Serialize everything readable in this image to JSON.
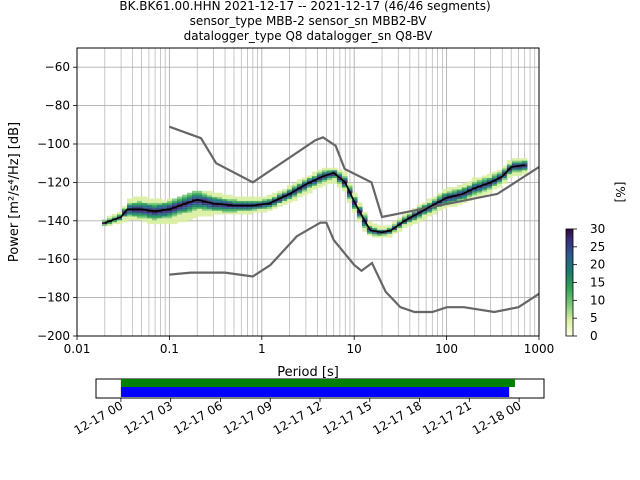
{
  "title": {
    "line1": "BK.BK61.00.HHN   2021-12-17 -- 2021-12-17  (46/46 segments)",
    "line2": "sensor_type MBB-2 sensor_sn MBB2-BV",
    "line3": "datalogger_type Q8 datalogger_sn Q8-BV"
  },
  "colors": {
    "mean": "#000000",
    "noise_model": "#666666",
    "coverage_data": "#0000ff",
    "coverage_gaps": "#008000",
    "colormap": [
      "#ffffe5",
      "#d9f0a3",
      "#78c679",
      "#31a354",
      "#1d7a6e",
      "#2b5a8c",
      "#3b2d77",
      "#2d0a3c"
    ]
  },
  "chart_data": [
    {
      "type": "heatmap",
      "xlabel": "Period [s]",
      "ylabel": "Power [m²/s⁴/Hz] [dB]",
      "xscale": "log",
      "xlim": [
        0.01,
        1000
      ],
      "ylim": [
        -200,
        -50
      ],
      "x_ticks": [
        {
          "value": 0.01,
          "label": "0.01"
        },
        {
          "value": 0.1,
          "label": "0.1"
        },
        {
          "value": 1,
          "label": "1"
        },
        {
          "value": 10,
          "label": "10"
        },
        {
          "value": 100,
          "label": "100"
        },
        {
          "value": 1000,
          "label": "1000"
        }
      ],
      "y_ticks": [
        {
          "value": -60,
          "label": "−60"
        },
        {
          "value": -80,
          "label": "−80"
        },
        {
          "value": -100,
          "label": "−100"
        },
        {
          "value": -120,
          "label": "−120"
        },
        {
          "value": -140,
          "label": "−140"
        },
        {
          "value": -160,
          "label": "−160"
        },
        {
          "value": -180,
          "label": "−180"
        },
        {
          "value": -200,
          "label": "−200"
        }
      ],
      "grid": true,
      "colorbar": {
        "label": "[%]",
        "range": [
          0,
          30
        ],
        "ticks": [
          {
            "value": 0,
            "label": "0"
          },
          {
            "value": 5,
            "label": "5"
          },
          {
            "value": 10,
            "label": "10"
          },
          {
            "value": 15,
            "label": "15"
          },
          {
            "value": 20,
            "label": "20"
          },
          {
            "value": 25,
            "label": "25"
          },
          {
            "value": 30,
            "label": "30"
          }
        ]
      },
      "mean_curve": [
        [
          0.02,
          -141
        ],
        [
          0.03,
          -138
        ],
        [
          0.035,
          -134
        ],
        [
          0.05,
          -134
        ],
        [
          0.07,
          -135
        ],
        [
          0.1,
          -134
        ],
        [
          0.15,
          -131
        ],
        [
          0.2,
          -129
        ],
        [
          0.3,
          -131
        ],
        [
          0.5,
          -132
        ],
        [
          0.8,
          -132
        ],
        [
          1.2,
          -131
        ],
        [
          2,
          -126
        ],
        [
          3,
          -121
        ],
        [
          4.5,
          -117
        ],
        [
          6,
          -115
        ],
        [
          8,
          -120
        ],
        [
          10,
          -130
        ],
        [
          13,
          -140
        ],
        [
          15,
          -145
        ],
        [
          20,
          -146
        ],
        [
          25,
          -145
        ],
        [
          35,
          -140
        ],
        [
          50,
          -136
        ],
        [
          70,
          -132
        ],
        [
          100,
          -128
        ],
        [
          150,
          -126
        ],
        [
          200,
          -123
        ],
        [
          300,
          -120
        ],
        [
          400,
          -117
        ],
        [
          500,
          -112
        ],
        [
          700,
          -111
        ]
      ],
      "high_noise_model": [
        [
          0.1,
          -91
        ],
        [
          0.22,
          -97
        ],
        [
          0.32,
          -110
        ],
        [
          0.8,
          -120
        ],
        [
          3.8,
          -98
        ],
        [
          4.6,
          -96.5
        ],
        [
          6.3,
          -101
        ],
        [
          7.9,
          -113
        ],
        [
          15.4,
          -120
        ],
        [
          20,
          -138
        ],
        [
          354.8,
          -126
        ],
        [
          1000,
          -112
        ]
      ],
      "low_noise_model": [
        [
          0.1,
          -168
        ],
        [
          0.17,
          -167
        ],
        [
          0.4,
          -167
        ],
        [
          0.8,
          -169
        ],
        [
          1.24,
          -163
        ],
        [
          2.4,
          -148
        ],
        [
          4.3,
          -141
        ],
        [
          5,
          -141
        ],
        [
          6,
          -150
        ],
        [
          10,
          -163
        ],
        [
          12,
          -166
        ],
        [
          15.6,
          -162
        ],
        [
          21.9,
          -177
        ],
        [
          31.6,
          -185
        ],
        [
          45,
          -187.5
        ],
        [
          70,
          -187.5
        ],
        [
          101,
          -185
        ],
        [
          154,
          -185
        ],
        [
          328,
          -187.5
        ],
        [
          600,
          -185
        ],
        [
          1000,
          -178
        ]
      ],
      "density_band": [
        [
          0.02,
          -142,
          -140
        ],
        [
          0.03,
          -140,
          -136
        ],
        [
          0.04,
          -138,
          -128
        ],
        [
          0.06,
          -140,
          -129
        ],
        [
          0.08,
          -141,
          -130
        ],
        [
          0.1,
          -141,
          -130
        ],
        [
          0.15,
          -139,
          -127
        ],
        [
          0.2,
          -137,
          -125
        ],
        [
          0.3,
          -136,
          -126
        ],
        [
          0.5,
          -136,
          -128
        ],
        [
          0.8,
          -135,
          -129
        ],
        [
          1.2,
          -134,
          -128
        ],
        [
          2,
          -130,
          -123
        ],
        [
          3,
          -125,
          -118
        ],
        [
          4.5,
          -121,
          -114
        ],
        [
          6,
          -119,
          -113
        ],
        [
          8,
          -124,
          -116
        ],
        [
          10,
          -134,
          -126
        ],
        [
          13,
          -144,
          -136
        ],
        [
          15,
          -147,
          -142
        ],
        [
          20,
          -148,
          -144
        ],
        [
          25,
          -147,
          -143
        ],
        [
          35,
          -143,
          -138
        ],
        [
          50,
          -140,
          -133
        ],
        [
          70,
          -136,
          -129
        ],
        [
          100,
          -132,
          -124
        ],
        [
          150,
          -130,
          -122
        ],
        [
          200,
          -127,
          -119
        ],
        [
          300,
          -124,
          -116
        ],
        [
          400,
          -121,
          -114
        ],
        [
          500,
          -116,
          -109
        ],
        [
          700,
          -115,
          -108
        ]
      ]
    },
    {
      "type": "bar",
      "name": "data coverage",
      "x_ticks": [
        "12-17 00",
        "12-17 03",
        "12-17 06",
        "12-17 09",
        "12-17 12",
        "12-17 15",
        "12-17 18",
        "12-17 21",
        "12-18 00"
      ],
      "range_hours": [
        -1.5,
        25.5
      ],
      "series": [
        {
          "color": "#008000",
          "start_hours": 0,
          "end_hours": 23.75
        },
        {
          "color": "#0000ff",
          "start_hours": 0,
          "end_hours": 23.4
        }
      ]
    }
  ]
}
